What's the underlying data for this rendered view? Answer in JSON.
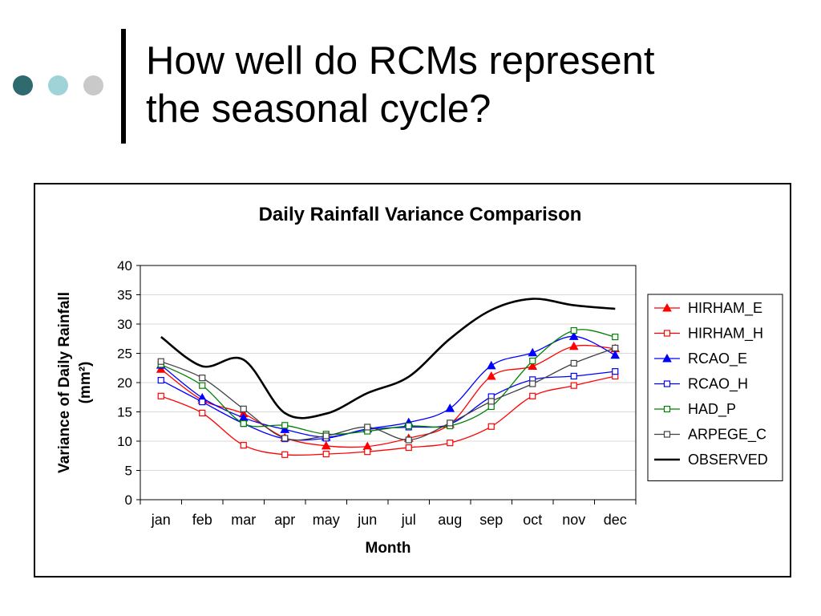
{
  "slide": {
    "title_lines": [
      "How well do RCMs represent",
      "the seasonal cycle?"
    ],
    "dot_colors": [
      "#2f6a6e",
      "#9fd3d8",
      "#c9c9c9"
    ]
  },
  "chart_data": {
    "type": "line",
    "title": "Daily Rainfall Variance Comparison",
    "xlabel": "Month",
    "ylabel": "Variance of Daily Rainfall (mm²)",
    "ylabel_lines": [
      "Variance of Daily Rainfall",
      "(mm²)"
    ],
    "ylim": [
      0,
      40
    ],
    "yticks": [
      0,
      5,
      10,
      15,
      20,
      25,
      30,
      35,
      40
    ],
    "grid": true,
    "legend_position": "right",
    "categories": [
      "jan",
      "feb",
      "mar",
      "apr",
      "may",
      "jun",
      "jul",
      "aug",
      "sep",
      "oct",
      "nov",
      "dec"
    ],
    "series": [
      {
        "name": "HIRHAM_E",
        "color": "#ff0000",
        "marker": "triangle-filled",
        "values": [
          22.3,
          17.0,
          14.7,
          10.6,
          9.2,
          9.1,
          10.5,
          12.9,
          21.1,
          22.8,
          26.2,
          25.8
        ]
      },
      {
        "name": "HIRHAM_H",
        "color": "#ff0000",
        "marker": "square-open",
        "values": [
          17.7,
          14.8,
          9.3,
          7.7,
          7.8,
          8.2,
          8.9,
          9.7,
          12.5,
          17.7,
          19.5,
          21.1
        ]
      },
      {
        "name": "RCAO_E",
        "color": "#0000ff",
        "marker": "triangle-filled",
        "values": [
          23.0,
          17.4,
          14.0,
          12.0,
          10.7,
          12.1,
          13.2,
          15.6,
          22.9,
          25.1,
          27.9,
          24.7
        ]
      },
      {
        "name": "RCAO_H",
        "color": "#0000ff",
        "marker": "square-open",
        "values": [
          20.4,
          16.7,
          13.0,
          10.4,
          10.5,
          12.0,
          12.4,
          12.9,
          17.6,
          20.5,
          21.1,
          21.9
        ]
      },
      {
        "name": "HAD_P",
        "color": "#008000",
        "marker": "square-open",
        "values": [
          23.1,
          19.5,
          13.0,
          12.7,
          11.2,
          11.7,
          12.6,
          12.6,
          15.9,
          23.7,
          28.9,
          27.8
        ]
      },
      {
        "name": "ARPEGE_C",
        "color": "#404040",
        "marker": "square-open",
        "values": [
          23.6,
          20.8,
          15.5,
          10.5,
          10.9,
          12.4,
          10.2,
          13.1,
          16.8,
          19.8,
          23.3,
          25.9
        ]
      },
      {
        "name": "OBSERVED",
        "color": "#000000",
        "marker": "none",
        "values": [
          27.8,
          22.8,
          23.9,
          14.8,
          14.7,
          18.2,
          21.0,
          27.5,
          32.4,
          34.3,
          33.2,
          32.6
        ]
      }
    ]
  }
}
